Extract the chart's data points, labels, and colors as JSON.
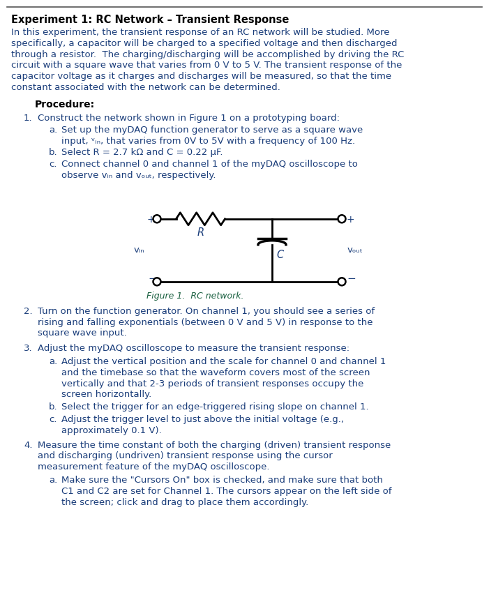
{
  "title": "Experiment 1: RC Network – Transient Response",
  "title_color": "#000000",
  "text_color": "#1a3d7a",
  "fig_caption_color": "#1a6040",
  "bg_color": "#ffffff",
  "fig_caption": "Figure 1.  RC network.",
  "procedure_label": "Procedure:"
}
